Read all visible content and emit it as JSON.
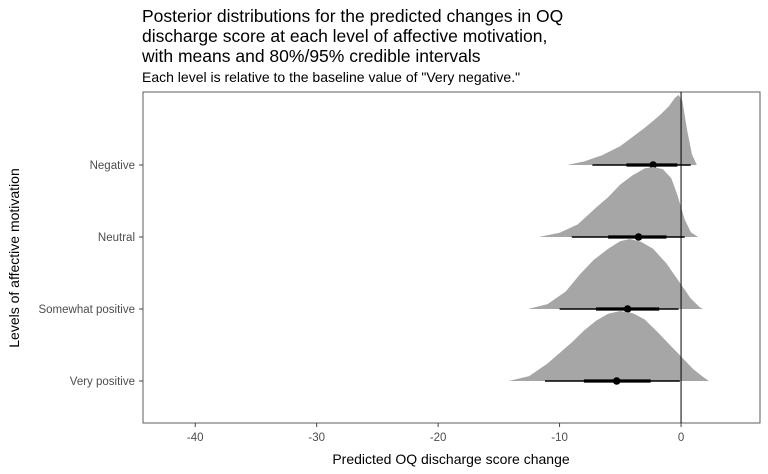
{
  "chart_data": {
    "type": "density-interval",
    "title": "Posterior distributions for the predicted changes in OQ\ndischarge score at each level of affective motivation,\nwith means and 80%/95% credible intervals",
    "subtitle": "Each level is relative to the baseline value of \"Very negative.\"",
    "xlabel": "Predicted OQ discharge score change",
    "ylabel": "Levels of affective motivation",
    "xlim": [
      -44.3,
      6.5
    ],
    "x_ticks": [
      -40,
      -30,
      -20,
      -10,
      0
    ],
    "x_tick_labels": [
      "-40",
      "-30",
      "-20",
      "-10",
      "0"
    ],
    "reference_line": 0,
    "grid": false,
    "fill_color": "#a6a6a6",
    "categories": [
      "Negative",
      "Neutral",
      "Somewhat positive",
      "Very positive"
    ],
    "series": [
      {
        "level": "Negative",
        "mean": -2.3,
        "ci80": [
          -4.5,
          -0.3
        ],
        "ci95": [
          -7.3,
          0.8
        ],
        "density": [
          [
            -9.4,
            0
          ],
          [
            -8,
            0.05
          ],
          [
            -6.5,
            0.14
          ],
          [
            -5,
            0.27
          ],
          [
            -4,
            0.4
          ],
          [
            -3,
            0.53
          ],
          [
            -2.3,
            0.63
          ],
          [
            -1.7,
            0.72
          ],
          [
            -1,
            0.84
          ],
          [
            -0.5,
            0.96
          ],
          [
            -0.2,
            1.0
          ],
          [
            0.1,
            0.92
          ],
          [
            0.5,
            0.5
          ],
          [
            0.9,
            0.15
          ],
          [
            1.3,
            0
          ]
        ]
      },
      {
        "level": "Neutral",
        "mean": -3.5,
        "ci80": [
          -6.0,
          -1.2
        ],
        "ci95": [
          -9.0,
          0.3
        ],
        "density": [
          [
            -11.7,
            0
          ],
          [
            -10,
            0.06
          ],
          [
            -8.5,
            0.18
          ],
          [
            -7,
            0.42
          ],
          [
            -6,
            0.57
          ],
          [
            -5,
            0.75
          ],
          [
            -4,
            0.88
          ],
          [
            -3,
            0.98
          ],
          [
            -2.3,
            1.0
          ],
          [
            -1.5,
            0.97
          ],
          [
            -0.8,
            0.84
          ],
          [
            -0.3,
            0.6
          ],
          [
            0.3,
            0.25
          ],
          [
            0.8,
            0.07
          ],
          [
            1.4,
            0
          ]
        ]
      },
      {
        "level": "Somewhat positive",
        "mean": -4.4,
        "ci80": [
          -7.0,
          -1.8
        ],
        "ci95": [
          -10.0,
          -0.2
        ],
        "density": [
          [
            -12.6,
            0
          ],
          [
            -11,
            0.07
          ],
          [
            -9.5,
            0.25
          ],
          [
            -8.3,
            0.5
          ],
          [
            -7.2,
            0.7
          ],
          [
            -6,
            0.86
          ],
          [
            -5,
            0.97
          ],
          [
            -4.2,
            1.0
          ],
          [
            -3.3,
            0.96
          ],
          [
            -2.3,
            0.86
          ],
          [
            -1.2,
            0.65
          ],
          [
            0,
            0.35
          ],
          [
            0.8,
            0.15
          ],
          [
            1.5,
            0.03
          ],
          [
            1.8,
            0
          ]
        ]
      },
      {
        "level": "Very positive",
        "mean": -5.3,
        "ci80": [
          -8.0,
          -2.5
        ],
        "ci95": [
          -11.2,
          -0.1
        ],
        "density": [
          [
            -14.2,
            0
          ],
          [
            -12.5,
            0.07
          ],
          [
            -11,
            0.25
          ],
          [
            -10,
            0.4
          ],
          [
            -9,
            0.55
          ],
          [
            -8,
            0.72
          ],
          [
            -7,
            0.86
          ],
          [
            -6,
            0.96
          ],
          [
            -5,
            1.0
          ],
          [
            -4,
            0.97
          ],
          [
            -3,
            0.88
          ],
          [
            -2,
            0.71
          ],
          [
            -1,
            0.53
          ],
          [
            0,
            0.35
          ],
          [
            1,
            0.17
          ],
          [
            1.8,
            0.06
          ],
          [
            2.3,
            0
          ]
        ]
      }
    ]
  }
}
